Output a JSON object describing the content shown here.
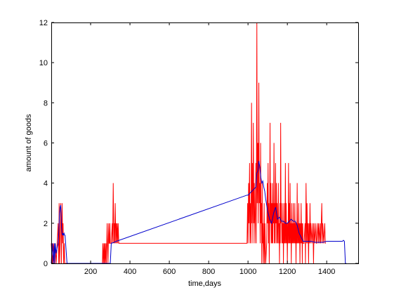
{
  "chart_data": {
    "type": "line",
    "title": "",
    "xlabel": "time,days",
    "ylabel": "amount of goods",
    "xlim": [
      0,
      1560
    ],
    "ylim": [
      0,
      12
    ],
    "xticks": [
      200,
      400,
      600,
      800,
      1000,
      1200,
      1400
    ],
    "yticks": [
      0,
      2,
      4,
      6,
      8,
      10,
      12
    ],
    "grid": false,
    "box": true,
    "series": [
      {
        "color": "#ff0000",
        "points": [
          [
            0,
            1
          ],
          [
            5,
            0
          ],
          [
            10,
            1
          ],
          [
            15,
            0
          ],
          [
            20,
            1
          ],
          [
            25,
            0
          ],
          [
            30,
            1
          ],
          [
            35,
            2
          ],
          [
            38,
            0
          ],
          [
            40,
            3
          ],
          [
            43,
            0
          ],
          [
            45,
            1
          ],
          [
            48,
            3
          ],
          [
            50,
            2
          ],
          [
            52,
            0
          ],
          [
            55,
            3
          ],
          [
            58,
            1
          ],
          [
            60,
            2
          ],
          [
            63,
            0
          ],
          [
            66,
            1
          ],
          [
            68,
            0
          ],
          [
            70,
            0
          ],
          [
            260,
            0
          ],
          [
            262,
            1
          ],
          [
            265,
            0
          ],
          [
            268,
            1
          ],
          [
            270,
            0
          ],
          [
            272,
            1
          ],
          [
            275,
            0
          ],
          [
            278,
            1
          ],
          [
            280,
            0
          ],
          [
            282,
            1
          ],
          [
            284,
            2
          ],
          [
            286,
            1
          ],
          [
            288,
            0
          ],
          [
            290,
            1
          ],
          [
            292,
            2
          ],
          [
            294,
            1
          ],
          [
            296,
            1
          ],
          [
            298,
            2
          ],
          [
            300,
            1
          ],
          [
            305,
            1
          ],
          [
            310,
            2
          ],
          [
            312,
            1
          ],
          [
            315,
            4
          ],
          [
            318,
            1
          ],
          [
            320,
            2
          ],
          [
            322,
            1
          ],
          [
            325,
            3
          ],
          [
            328,
            1
          ],
          [
            330,
            2
          ],
          [
            332,
            1
          ],
          [
            335,
            2
          ],
          [
            338,
            1
          ],
          [
            340,
            2
          ],
          [
            343,
            1
          ],
          [
            345,
            1
          ],
          [
            995,
            1
          ],
          [
            998,
            3
          ],
          [
            1000,
            1
          ],
          [
            1003,
            4
          ],
          [
            1005,
            2
          ],
          [
            1008,
            5
          ],
          [
            1010,
            1
          ],
          [
            1013,
            3
          ],
          [
            1015,
            1
          ],
          [
            1018,
            8
          ],
          [
            1020,
            2
          ],
          [
            1022,
            5
          ],
          [
            1025,
            1
          ],
          [
            1027,
            7
          ],
          [
            1030,
            2
          ],
          [
            1032,
            4
          ],
          [
            1035,
            1
          ],
          [
            1038,
            3
          ],
          [
            1040,
            5
          ],
          [
            1042,
            1
          ],
          [
            1045,
            12
          ],
          [
            1047,
            3
          ],
          [
            1050,
            6
          ],
          [
            1052,
            2
          ],
          [
            1055,
            9
          ],
          [
            1057,
            3
          ],
          [
            1060,
            4
          ],
          [
            1062,
            1
          ],
          [
            1064,
            6
          ],
          [
            1066,
            2
          ],
          [
            1068,
            3
          ],
          [
            1070,
            0
          ],
          [
            1072,
            4
          ],
          [
            1074,
            1
          ],
          [
            1076,
            2
          ],
          [
            1078,
            0
          ],
          [
            1080,
            1
          ],
          [
            1082,
            3
          ],
          [
            1084,
            0
          ],
          [
            1086,
            2
          ],
          [
            1088,
            1
          ],
          [
            1090,
            0
          ],
          [
            1095,
            1
          ],
          [
            1098,
            4
          ],
          [
            1100,
            2
          ],
          [
            1102,
            5
          ],
          [
            1104,
            1
          ],
          [
            1106,
            3
          ],
          [
            1108,
            0
          ],
          [
            1110,
            2
          ],
          [
            1112,
            7
          ],
          [
            1114,
            2
          ],
          [
            1116,
            4
          ],
          [
            1118,
            1
          ],
          [
            1120,
            3
          ],
          [
            1122,
            1
          ],
          [
            1124,
            4
          ],
          [
            1126,
            1
          ],
          [
            1128,
            3
          ],
          [
            1130,
            2
          ],
          [
            1132,
            6
          ],
          [
            1134,
            1
          ],
          [
            1136,
            3
          ],
          [
            1138,
            1
          ],
          [
            1140,
            5
          ],
          [
            1142,
            2
          ],
          [
            1144,
            4
          ],
          [
            1146,
            1
          ],
          [
            1148,
            3
          ],
          [
            1150,
            1
          ],
          [
            1152,
            2
          ],
          [
            1154,
            4
          ],
          [
            1156,
            1
          ],
          [
            1158,
            2
          ],
          [
            1160,
            0
          ],
          [
            1162,
            3
          ],
          [
            1164,
            1
          ],
          [
            1166,
            7
          ],
          [
            1168,
            2
          ],
          [
            1170,
            3
          ],
          [
            1172,
            1
          ],
          [
            1174,
            2
          ],
          [
            1176,
            1
          ],
          [
            1178,
            3
          ],
          [
            1180,
            0
          ],
          [
            1182,
            2
          ],
          [
            1184,
            1
          ],
          [
            1186,
            3
          ],
          [
            1188,
            1
          ],
          [
            1190,
            5
          ],
          [
            1192,
            1
          ],
          [
            1194,
            3
          ],
          [
            1196,
            1
          ],
          [
            1198,
            2
          ],
          [
            1200,
            0
          ],
          [
            1202,
            2
          ],
          [
            1204,
            1
          ],
          [
            1206,
            5
          ],
          [
            1208,
            1
          ],
          [
            1210,
            3
          ],
          [
            1212,
            1
          ],
          [
            1214,
            4
          ],
          [
            1216,
            1
          ],
          [
            1218,
            2
          ],
          [
            1220,
            0
          ],
          [
            1222,
            3
          ],
          [
            1224,
            1
          ],
          [
            1226,
            2
          ],
          [
            1228,
            1
          ],
          [
            1230,
            3
          ],
          [
            1232,
            1
          ],
          [
            1234,
            2
          ],
          [
            1236,
            1
          ],
          [
            1238,
            3
          ],
          [
            1240,
            1
          ],
          [
            1242,
            2
          ],
          [
            1244,
            0
          ],
          [
            1246,
            2
          ],
          [
            1248,
            1
          ],
          [
            1250,
            4
          ],
          [
            1252,
            1
          ],
          [
            1254,
            2
          ],
          [
            1256,
            1
          ],
          [
            1258,
            3
          ],
          [
            1260,
            1
          ],
          [
            1262,
            2
          ],
          [
            1264,
            0
          ],
          [
            1266,
            2
          ],
          [
            1268,
            1
          ],
          [
            1270,
            3
          ],
          [
            1272,
            1
          ],
          [
            1274,
            2
          ],
          [
            1276,
            0
          ],
          [
            1278,
            2
          ],
          [
            1280,
            1
          ],
          [
            1285,
            1
          ],
          [
            1290,
            2
          ],
          [
            1292,
            0
          ],
          [
            1295,
            4
          ],
          [
            1298,
            1
          ],
          [
            1300,
            3
          ],
          [
            1303,
            1
          ],
          [
            1305,
            2
          ],
          [
            1308,
            0
          ],
          [
            1310,
            2
          ],
          [
            1313,
            1
          ],
          [
            1315,
            3
          ],
          [
            1318,
            1
          ],
          [
            1320,
            2
          ],
          [
            1325,
            1
          ],
          [
            1330,
            2
          ],
          [
            1333,
            0
          ],
          [
            1336,
            2
          ],
          [
            1340,
            1
          ],
          [
            1345,
            2
          ],
          [
            1348,
            1
          ],
          [
            1350,
            1
          ],
          [
            1355,
            2
          ],
          [
            1358,
            1
          ],
          [
            1360,
            2
          ],
          [
            1365,
            1
          ],
          [
            1368,
            2
          ],
          [
            1370,
            1
          ],
          [
            1375,
            3
          ],
          [
            1378,
            1
          ],
          [
            1380,
            2
          ],
          [
            1385,
            1
          ],
          [
            1390,
            2
          ],
          [
            1393,
            1
          ],
          [
            1395,
            1
          ]
        ]
      },
      {
        "color": "#0000cc",
        "points": [
          [
            0,
            0
          ],
          [
            5,
            1
          ],
          [
            10,
            0
          ],
          [
            15,
            1
          ],
          [
            18,
            0
          ],
          [
            20,
            1
          ],
          [
            25,
            0.5
          ],
          [
            30,
            0.8
          ],
          [
            35,
            1.0
          ],
          [
            38,
            1.5
          ],
          [
            40,
            2.0
          ],
          [
            42,
            2.5
          ],
          [
            45,
            2.8
          ],
          [
            48,
            2.9
          ],
          [
            50,
            2.5
          ],
          [
            52,
            1.8
          ],
          [
            55,
            1.5
          ],
          [
            58,
            1.4
          ],
          [
            60,
            1.5
          ],
          [
            62,
            1.4
          ],
          [
            65,
            1.5
          ],
          [
            68,
            1.4
          ],
          [
            70,
            1.4
          ],
          [
            80,
            0
          ],
          [
            200,
            0
          ],
          [
            300,
            0
          ],
          [
            305,
            1.0
          ],
          [
            320,
            1.05
          ],
          [
            330,
            1.1
          ],
          [
            345,
            1.15
          ],
          [
            995,
            3.4
          ],
          [
            1000,
            3.4
          ],
          [
            1010,
            3.5
          ],
          [
            1020,
            3.6
          ],
          [
            1030,
            3.7
          ],
          [
            1040,
            3.8
          ],
          [
            1045,
            4.5
          ],
          [
            1050,
            4.6
          ],
          [
            1055,
            5.1
          ],
          [
            1060,
            4.8
          ],
          [
            1065,
            4.3
          ],
          [
            1070,
            4.0
          ],
          [
            1075,
            4.1
          ],
          [
            1080,
            3.8
          ],
          [
            1085,
            3.6
          ],
          [
            1090,
            3.2
          ],
          [
            1100,
            2.6
          ],
          [
            1110,
            2.2
          ],
          [
            1120,
            2.0
          ],
          [
            1130,
            2.5
          ],
          [
            1140,
            2.8
          ],
          [
            1150,
            2.2
          ],
          [
            1160,
            2.3
          ],
          [
            1170,
            2.1
          ],
          [
            1180,
            2.1
          ],
          [
            1190,
            2.0
          ],
          [
            1200,
            2.0
          ],
          [
            1210,
            2.1
          ],
          [
            1220,
            2.2
          ],
          [
            1230,
            2.1
          ],
          [
            1240,
            2.1
          ],
          [
            1250,
            1.9
          ],
          [
            1260,
            1.5
          ],
          [
            1270,
            1.3
          ],
          [
            1280,
            1.1
          ],
          [
            1300,
            1.1
          ],
          [
            1320,
            1.1
          ],
          [
            1340,
            1.05
          ],
          [
            1360,
            1.05
          ],
          [
            1380,
            1.05
          ],
          [
            1400,
            1.1
          ],
          [
            1450,
            1.1
          ],
          [
            1480,
            1.1
          ],
          [
            1485,
            1.15
          ],
          [
            1490,
            1.1
          ],
          [
            1495,
            0
          ],
          [
            1500,
            0
          ]
        ]
      }
    ]
  }
}
